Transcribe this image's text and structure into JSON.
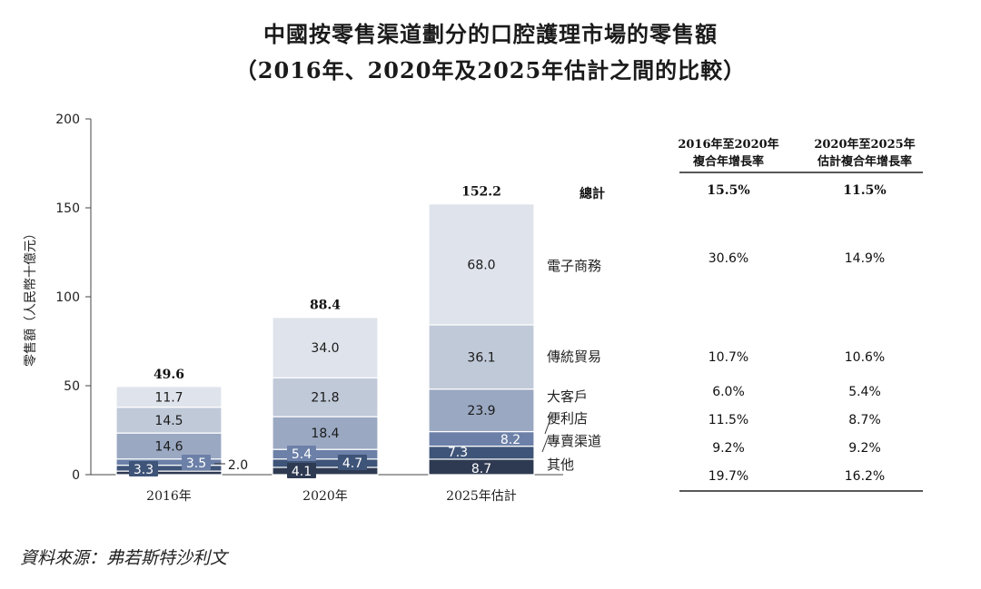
{
  "title": "中國按零售渠道劃分的口腔護理市場的零售額",
  "subtitle": "（2016年、2020年及2025年估計之間的比較）",
  "source": "資料來源：弗若斯特沙利文",
  "chart_data": {
    "type": "bar",
    "stacked": true,
    "ylabel": "零售額（人民幣十億元）",
    "ylim": [
      0,
      200
    ],
    "yticks": [
      0,
      50,
      100,
      150,
      200
    ],
    "categories": [
      "2016年",
      "2020年",
      "2025年估計"
    ],
    "totals": [
      49.6,
      88.4,
      152.2
    ],
    "total_labels": [
      "49.6",
      "88.4",
      "152.2"
    ],
    "total_row_label": "總計",
    "series": [
      {
        "name": "其他",
        "color": "#2e3a52",
        "values": [
          2.0,
          4.1,
          8.7
        ],
        "labels": [
          "2.0",
          "4.1",
          "8.7"
        ]
      },
      {
        "name": "專賣渠道",
        "color": "#3e5478",
        "values": [
          3.3,
          4.7,
          7.3
        ],
        "labels": [
          "3.3",
          "4.7",
          "7.3"
        ]
      },
      {
        "name": "便利店",
        "color": "#6c80a8",
        "values": [
          3.5,
          5.4,
          8.2
        ],
        "labels": [
          "3.5",
          "5.4",
          "8.2"
        ]
      },
      {
        "name": "大客戶",
        "color": "#9aa8c2",
        "values": [
          14.6,
          18.4,
          23.9
        ],
        "labels": [
          "14.6",
          "18.4",
          "23.9"
        ]
      },
      {
        "name": "傳統貿易",
        "color": "#c0c9d8",
        "values": [
          14.5,
          21.8,
          36.1
        ],
        "labels": [
          "14.5",
          "21.8",
          "36.1"
        ]
      },
      {
        "name": "電子商務",
        "color": "#dfe4ec",
        "values": [
          11.7,
          34.0,
          68.0
        ],
        "labels": [
          "11.7",
          "34.0",
          "68.0"
        ]
      }
    ],
    "cagr_table": {
      "headers": [
        [
          "2016年至2020年",
          "複合年增長率"
        ],
        [
          "2020年至2025年",
          "估計複合年增長率"
        ]
      ],
      "rows": [
        {
          "label": "總計",
          "c1": "15.5%",
          "c2": "11.5%"
        },
        {
          "label": "電子商務",
          "c1": "30.6%",
          "c2": "14.9%"
        },
        {
          "label": "傳統貿易",
          "c1": "10.7%",
          "c2": "10.6%"
        },
        {
          "label": "大客戶",
          "c1": "6.0%",
          "c2": "5.4%"
        },
        {
          "label": "便利店",
          "c1": "11.5%",
          "c2": "8.7%"
        },
        {
          "label": "專賣渠道",
          "c1": "9.2%",
          "c2": "9.2%"
        },
        {
          "label": "其他",
          "c1": "19.7%",
          "c2": "16.2%"
        }
      ]
    }
  }
}
